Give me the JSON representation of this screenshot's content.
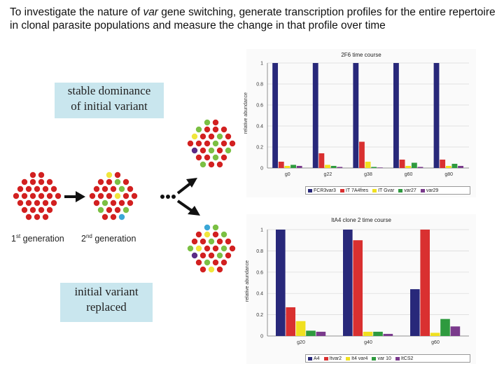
{
  "heading": {
    "line_pre": "To investigate the nature of ",
    "line_em": "var",
    "line_post": " gene switching, generate transcription profiles for the entire repertoire in clonal parasite populations and measure the change in that profile over time"
  },
  "callout_top": {
    "line1": "stable dominance",
    "line2": "of initial variant"
  },
  "callout_bottom": {
    "line1": "initial variant",
    "line2": "replaced"
  },
  "generations": {
    "first_num": "1",
    "first_sup": "st",
    "first_text": " generation",
    "second_num": "2",
    "second_sup": "nd",
    "second_text": " generation"
  },
  "colors": {
    "red": "#d22020",
    "green": "#7bc043",
    "yellow": "#f0e63c",
    "blue": "#3ba7d6",
    "purple": "#5b2a86",
    "callout_bg": "#c9e6ee"
  },
  "chart_data": [
    {
      "type": "bar",
      "title": "2F6 time course",
      "ylabel": "relative abundance",
      "ylim": [
        0,
        1
      ],
      "yticks": [
        "0",
        "0.2",
        "0.4",
        "0.6",
        "0.8",
        "1"
      ],
      "categories": [
        "g0",
        "g22",
        "g38",
        "g60",
        "g80"
      ],
      "series": [
        {
          "name": "FCR3var3",
          "color": "#28287a",
          "values": [
            1.0,
            1.0,
            1.0,
            1.0,
            1.0
          ]
        },
        {
          "name": "IT 7A4fres",
          "color": "#d93030",
          "values": [
            0.06,
            0.14,
            0.25,
            0.08,
            0.08
          ]
        },
        {
          "name": "IT Gvar",
          "color": "#f0e020",
          "values": [
            0.02,
            0.03,
            0.06,
            0.02,
            0.02
          ]
        },
        {
          "name": "var27",
          "color": "#2e9a3e",
          "values": [
            0.03,
            0.02,
            0.01,
            0.05,
            0.04
          ]
        },
        {
          "name": "var29",
          "color": "#7a3a8c",
          "values": [
            0.02,
            0.01,
            0.005,
            0.01,
            0.02
          ]
        }
      ]
    },
    {
      "type": "bar",
      "title": "ItA4 clone 2 time course",
      "ylabel": "relative abundance",
      "ylim": [
        0,
        1
      ],
      "yticks": [
        "0",
        "0.2",
        "0.4",
        "0.6",
        "0.8",
        "1"
      ],
      "categories": [
        "g20",
        "g40",
        "g60"
      ],
      "series": [
        {
          "name": "A4",
          "color": "#28287a",
          "values": [
            1.0,
            1.0,
            0.44
          ]
        },
        {
          "name": "Itvar2",
          "color": "#d93030",
          "values": [
            0.27,
            0.9,
            1.0
          ]
        },
        {
          "name": "It4 var4",
          "color": "#f0e020",
          "values": [
            0.14,
            0.04,
            0.03
          ]
        },
        {
          "name": "var 10",
          "color": "#2e9a3e",
          "values": [
            0.05,
            0.04,
            0.16
          ]
        },
        {
          "name": "ItCS2",
          "color": "#7a3a8c",
          "values": [
            0.04,
            0.02,
            0.09
          ]
        }
      ]
    }
  ]
}
